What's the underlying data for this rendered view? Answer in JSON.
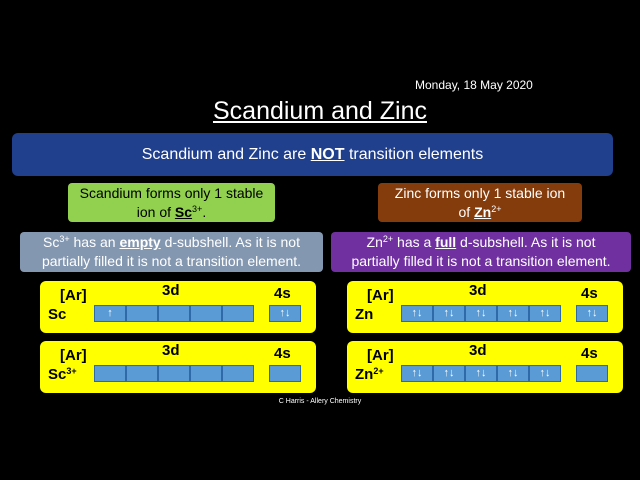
{
  "date": "Monday, 18 May 2020",
  "title": "Scandium and Zinc",
  "banner": [
    "Scandium and Zinc are ",
    "NOT",
    " transition elements"
  ],
  "scandium": {
    "ion_box": {
      "line1": "Scandium forms only 1 stable",
      "line2": [
        "ion of ",
        "Sc",
        "3+",
        "."
      ]
    },
    "info": {
      "line1": [
        "Sc",
        "3+",
        " has an ",
        "empty",
        " d-subshell. As it is not"
      ],
      "line2": "partially filled it is not a transition element."
    }
  },
  "zinc": {
    "ion_box": {
      "line1": "Zinc forms only 1 stable ion",
      "line2": [
        "of ",
        "Zn",
        "2+"
      ]
    },
    "info": {
      "line1": [
        "Zn",
        "2+",
        " has a ",
        "full",
        " d-subshell. As it is not"
      ],
      "line2": "partially filled it is not a transition element."
    }
  },
  "panels": [
    {
      "core": "[Ar]",
      "subshell_d": "3d",
      "subshell_s": "4s",
      "symbol": "Sc",
      "d": [
        "↑",
        null,
        null,
        null,
        null
      ],
      "s": "↑↓"
    },
    {
      "core": "[Ar]",
      "subshell_d": "3d",
      "subshell_s": "4s",
      "symbol": "Sc",
      "charge": "3+",
      "d": [
        null,
        null,
        null,
        null,
        null
      ],
      "s": null
    },
    {
      "core": "[Ar]",
      "subshell_d": "3d",
      "subshell_s": "4s",
      "symbol": "Zn",
      "d": [
        "↑↓",
        "↑↓",
        "↑↓",
        "↑↓",
        "↑↓"
      ],
      "s": "↑↓"
    },
    {
      "core": "[Ar]",
      "subshell_d": "3d",
      "subshell_s": "4s",
      "symbol": "Zn",
      "charge": "2+",
      "d": [
        "↑↓",
        "↑↓",
        "↑↓",
        "↑↓",
        "↑↓"
      ],
      "s": null
    }
  ],
  "footer": "C Harris - Allery Chemistry"
}
